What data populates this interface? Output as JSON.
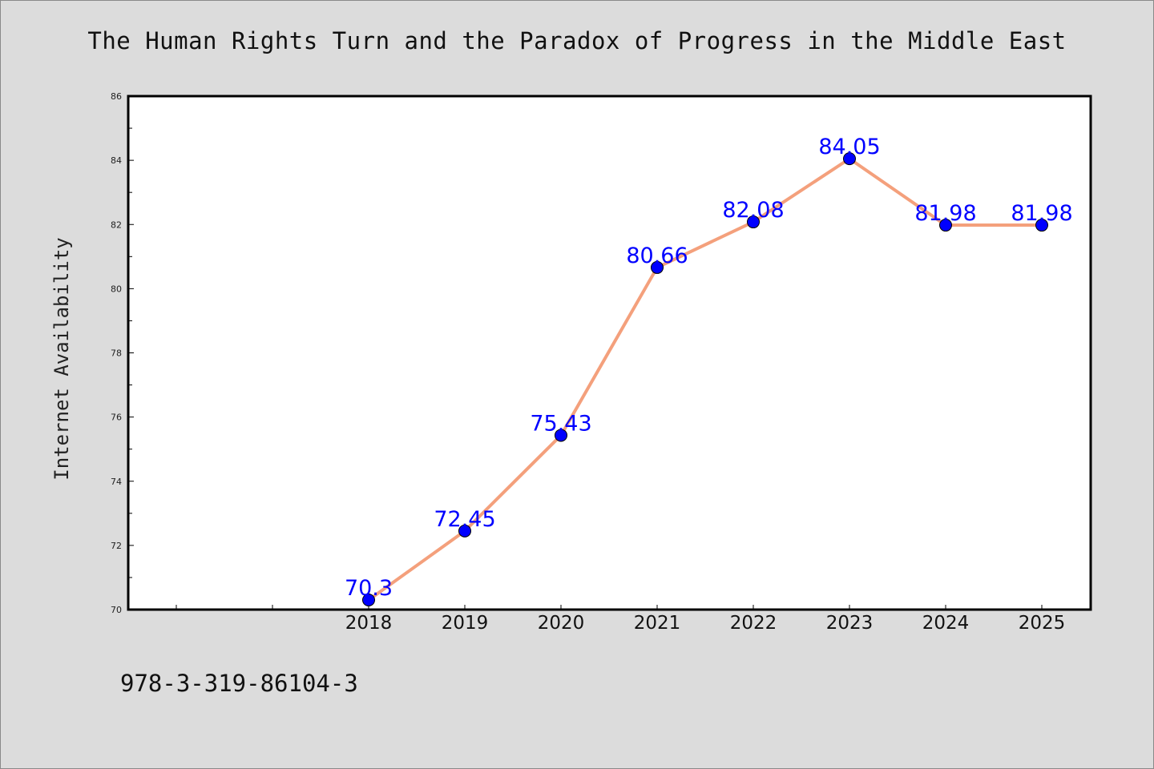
{
  "chart_data": {
    "type": "line",
    "title": "The Human Rights Turn and the Paradox of Progress in the Middle East",
    "xlabel": "",
    "ylabel": "Internet Availability",
    "categories": [
      "2018",
      "2019",
      "2020",
      "2021",
      "2022",
      "2023",
      "2024",
      "2025"
    ],
    "series": [
      {
        "values": [
          70.3,
          72.45,
          75.43,
          80.66,
          82.08,
          84.05,
          81.98,
          81.98
        ],
        "labels": [
          "70.3",
          "72.45",
          "75.43",
          "80.66",
          "82.08",
          "84.05",
          "81.98",
          "81.98"
        ]
      }
    ],
    "ylim": [
      70,
      86
    ],
    "yticks": [
      "70",
      "72",
      "74",
      "76",
      "78",
      "80",
      "82",
      "84",
      "86"
    ],
    "grid": false,
    "legend": "none",
    "colors": {
      "line": "#f4a07c",
      "marker": "#0000ff",
      "label": "#0000ff",
      "background": "#dcdcdc",
      "plot_area": "#ffffff"
    }
  },
  "footer": {
    "isbn": "978-3-319-86104-3"
  }
}
